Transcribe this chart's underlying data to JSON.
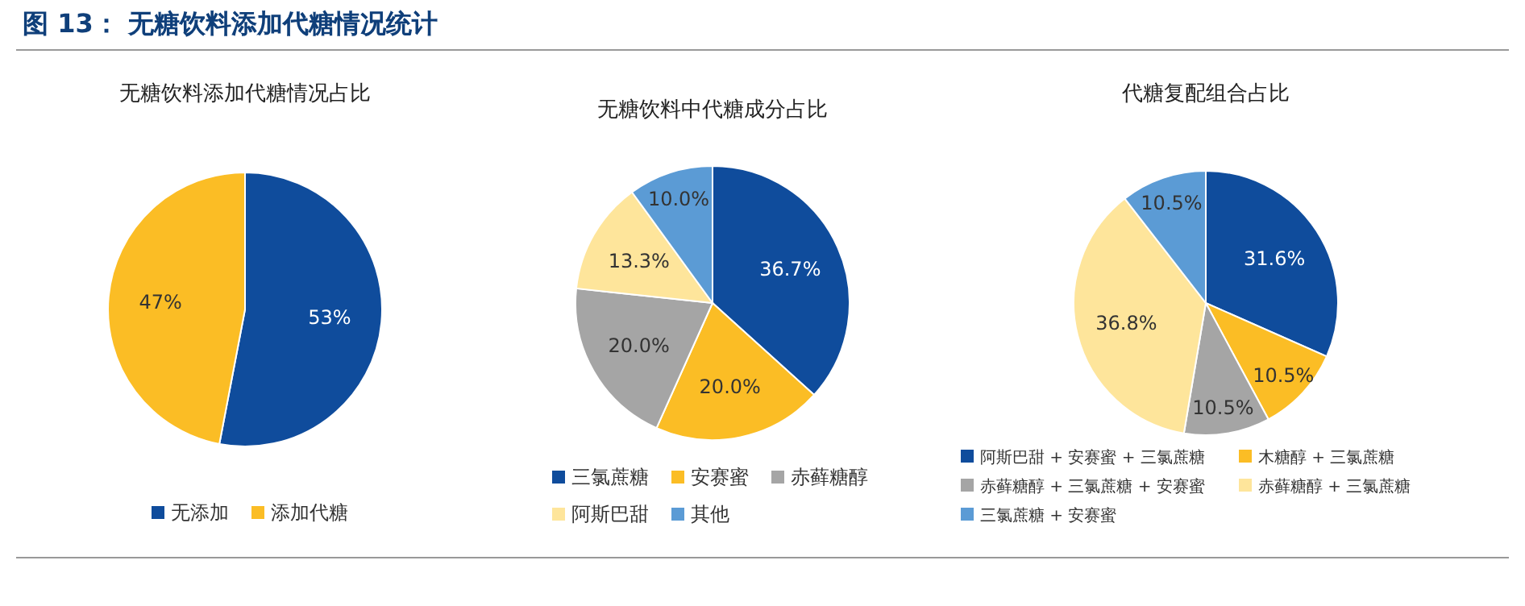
{
  "chart_data": [
    {
      "type": "other",
      "title": "图 13：  无糖饮料添加代糖情况统计"
    },
    {
      "type": "pie",
      "title": "无糖饮料添加代糖情况占比",
      "categories": [
        "无添加",
        "添加代糖"
      ],
      "values": [
        53,
        47
      ],
      "colors": [
        "#0f4c9c",
        "#fbbd25"
      ],
      "value_labels": [
        "53%",
        "47%"
      ],
      "legend": "bottom"
    },
    {
      "type": "pie",
      "title": "无糖饮料中代糖成分占比",
      "categories": [
        "三氯蔗糖",
        "安赛蜜",
        "赤藓糖醇",
        "阿斯巴甜",
        "其他"
      ],
      "values": [
        36.7,
        20.0,
        20.0,
        13.3,
        10.0
      ],
      "colors": [
        "#0f4c9c",
        "#fbbd25",
        "#a5a5a5",
        "#fee59b",
        "#5b9bd5"
      ],
      "value_labels": [
        "36.7%",
        "20.0%",
        "20.0%",
        "13.3%",
        "10.0%"
      ],
      "legend": "bottom"
    },
    {
      "type": "pie",
      "title": "代糖复配组合占比",
      "categories": [
        "阿斯巴甜 + 安赛蜜 + 三氯蔗糖",
        "木糖醇 + 三氯蔗糖",
        "赤藓糖醇 + 三氯蔗糖 + 安赛蜜",
        "赤藓糖醇 + 三氯蔗糖",
        "三氯蔗糖 + 安赛蜜"
      ],
      "values": [
        31.6,
        10.5,
        10.5,
        36.8,
        10.5
      ],
      "colors": [
        "#0f4c9c",
        "#fbbd25",
        "#a5a5a5",
        "#fee59b",
        "#5b9bd5"
      ],
      "value_labels": [
        "31.6%",
        "10.5%",
        "10.5%",
        "36.8%",
        "10.5%"
      ],
      "legend": "bottom"
    }
  ]
}
